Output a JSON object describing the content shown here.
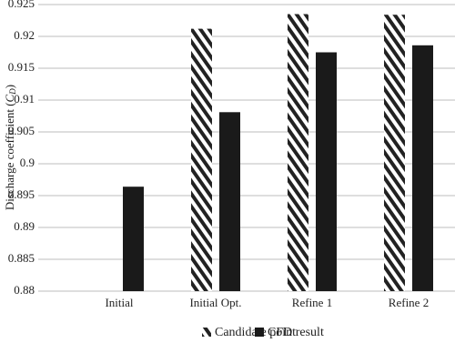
{
  "chart_data": {
    "type": "bar",
    "y_label": [
      "Discharge coefficient (",
      "C",
      "D",
      ")"
    ],
    "categories": [
      "Initial",
      "Initial Opt.",
      "Refine 1",
      "Refine 2"
    ],
    "series": [
      {
        "name": "Candidate point",
        "color": "#222222",
        "hatch": true,
        "values": [
          null,
          0.9212,
          0.9235,
          0.9234
        ]
      },
      {
        "name": "CFD result",
        "color": "#1a1a1a",
        "hatch": false,
        "values": [
          0.8964,
          0.9081,
          0.9175,
          0.9186
        ]
      }
    ],
    "ylim": [
      0.88,
      0.925
    ],
    "yticks": [
      0.88,
      0.885,
      0.89,
      0.895,
      0.9,
      0.905,
      0.91,
      0.915,
      0.92,
      0.925
    ],
    "grid": true,
    "legend": "bottom"
  }
}
